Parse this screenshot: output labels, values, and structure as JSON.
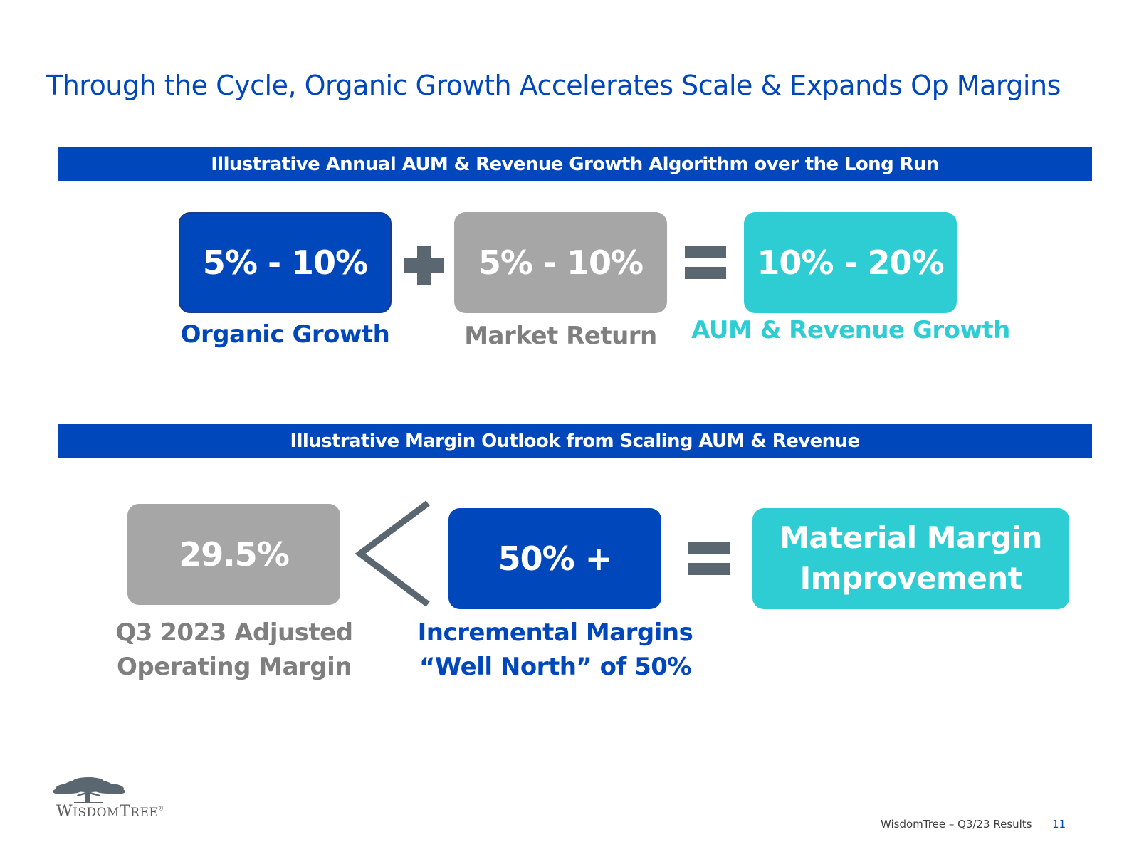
{
  "title": "Through the Cycle, Organic Growth Accelerates Scale & Expands Op Margins",
  "section1": {
    "banner": "Illustrative Annual AUM & Revenue Growth Algorithm over the Long Run",
    "organic": {
      "value": "5% - 10%",
      "label": "Organic Growth"
    },
    "market": {
      "value": "5% - 10%",
      "label": "Market Return"
    },
    "result": {
      "value": "10% - 20%",
      "label": "AUM & Revenue Growth"
    }
  },
  "section2": {
    "banner": "Illustrative Margin Outlook from Scaling AUM & Revenue",
    "current": {
      "value": "29.5%",
      "label_line1": "Q3 2023 Adjusted",
      "label_line2": "Operating Margin"
    },
    "incremental": {
      "value": "50% +",
      "label_line1": "Incremental Margins",
      "label_line2": "“Well North” of 50%"
    },
    "result": {
      "value_line1": "Material Margin",
      "value_line2": "Improvement"
    }
  },
  "logo": {
    "name_w": "W",
    "name_isdom": "ISDOM",
    "name_t": "T",
    "name_ree": "REE",
    "reg": "®"
  },
  "footer": {
    "text": "WisdomTree – Q3/23 Results",
    "page": "11"
  },
  "colors": {
    "blue": "#0047bb",
    "grey": "#a6a6a6",
    "teal": "#2ecdd3",
    "operator": "#5b6770"
  }
}
